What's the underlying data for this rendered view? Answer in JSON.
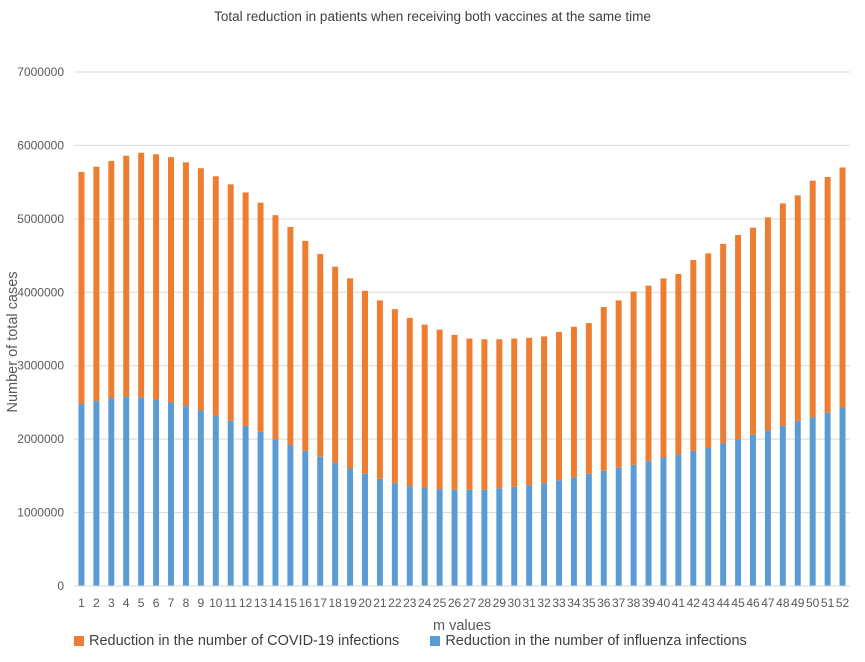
{
  "chart_data": {
    "type": "bar",
    "stacked": true,
    "title": "Total reduction in patients when receiving both vaccines at the same time",
    "xlabel": "m values",
    "ylabel": "Number of total cases",
    "ylim": [
      0,
      7000000
    ],
    "yticks": [
      "0",
      "1000000",
      "2000000",
      "3000000",
      "4000000",
      "5000000",
      "6000000",
      "7000000"
    ],
    "grid": true,
    "legend_position": "bottom-left",
    "categories": [
      "1",
      "2",
      "3",
      "4",
      "5",
      "6",
      "7",
      "8",
      "9",
      "10",
      "11",
      "12",
      "13",
      "14",
      "15",
      "16",
      "17",
      "18",
      "19",
      "20",
      "21",
      "22",
      "23",
      "24",
      "25",
      "26",
      "27",
      "28",
      "29",
      "30",
      "31",
      "32",
      "33",
      "34",
      "35",
      "36",
      "37",
      "38",
      "39",
      "40",
      "41",
      "42",
      "43",
      "44",
      "45",
      "46",
      "47",
      "48",
      "49",
      "50",
      "51",
      "52"
    ],
    "series": [
      {
        "name": "Reduction in the number of influenza infections",
        "color": "#5b9bd5",
        "values": [
          2480000,
          2520000,
          2560000,
          2580000,
          2570000,
          2540000,
          2500000,
          2450000,
          2390000,
          2320000,
          2250000,
          2180000,
          2100000,
          2000000,
          1920000,
          1840000,
          1760000,
          1680000,
          1600000,
          1530000,
          1460000,
          1400000,
          1360000,
          1340000,
          1320000,
          1310000,
          1310000,
          1310000,
          1330000,
          1350000,
          1370000,
          1400000,
          1440000,
          1480000,
          1530000,
          1570000,
          1610000,
          1650000,
          1700000,
          1750000,
          1790000,
          1840000,
          1880000,
          1940000,
          2000000,
          2060000,
          2120000,
          2180000,
          2250000,
          2300000,
          2360000,
          2430000
        ]
      },
      {
        "name": "Reduction in the number of COVID-19 infections",
        "color": "#ed7d31",
        "values": [
          3160000,
          3190000,
          3230000,
          3280000,
          3330000,
          3340000,
          3340000,
          3320000,
          3300000,
          3260000,
          3220000,
          3180000,
          3120000,
          3050000,
          2970000,
          2860000,
          2760000,
          2670000,
          2590000,
          2490000,
          2430000,
          2370000,
          2290000,
          2220000,
          2170000,
          2110000,
          2060000,
          2050000,
          2030000,
          2020000,
          2010000,
          2000000,
          2020000,
          2050000,
          2050000,
          2230000,
          2280000,
          2360000,
          2390000,
          2440000,
          2460000,
          2600000,
          2650000,
          2720000,
          2780000,
          2820000,
          2900000,
          3030000,
          3070000,
          3220000,
          3210000,
          3270000
        ]
      }
    ],
    "legend_order": [
      1,
      0
    ]
  }
}
